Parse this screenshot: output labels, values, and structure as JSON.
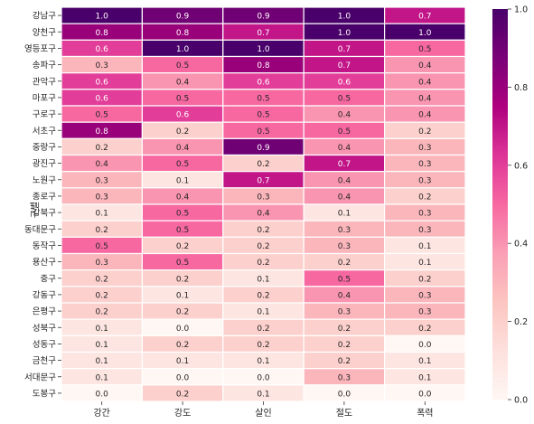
{
  "chart_data": {
    "type": "heatmap",
    "title": "",
    "xlabel": "",
    "ylabel": "구별",
    "columns": [
      "강간",
      "강도",
      "살인",
      "절도",
      "폭력"
    ],
    "rows": [
      "강남구",
      "양천구",
      "영등포구",
      "송파구",
      "관악구",
      "마포구",
      "구로구",
      "서초구",
      "중랑구",
      "광진구",
      "노원구",
      "종로구",
      "강북구",
      "동대문구",
      "동작구",
      "용산구",
      "중구",
      "강동구",
      "은평구",
      "성북구",
      "성동구",
      "금천구",
      "서대문구",
      "도봉구"
    ],
    "values": [
      [
        1.0,
        0.9,
        0.9,
        1.0,
        0.7
      ],
      [
        0.8,
        0.8,
        0.7,
        1.0,
        1.0
      ],
      [
        0.6,
        1.0,
        1.0,
        0.7,
        0.5
      ],
      [
        0.3,
        0.5,
        0.8,
        0.7,
        0.4
      ],
      [
        0.6,
        0.4,
        0.6,
        0.6,
        0.4
      ],
      [
        0.6,
        0.5,
        0.5,
        0.5,
        0.4
      ],
      [
        0.5,
        0.6,
        0.5,
        0.4,
        0.4
      ],
      [
        0.8,
        0.2,
        0.5,
        0.5,
        0.2
      ],
      [
        0.2,
        0.4,
        0.9,
        0.4,
        0.3
      ],
      [
        0.4,
        0.5,
        0.2,
        0.7,
        0.3
      ],
      [
        0.3,
        0.1,
        0.7,
        0.4,
        0.3
      ],
      [
        0.3,
        0.4,
        0.3,
        0.4,
        0.2
      ],
      [
        0.1,
        0.5,
        0.4,
        0.1,
        0.3
      ],
      [
        0.2,
        0.5,
        0.2,
        0.3,
        0.3
      ],
      [
        0.5,
        0.2,
        0.2,
        0.3,
        0.1
      ],
      [
        0.3,
        0.5,
        0.2,
        0.2,
        0.1
      ],
      [
        0.2,
        0.2,
        0.1,
        0.5,
        0.2
      ],
      [
        0.2,
        0.1,
        0.2,
        0.4,
        0.3
      ],
      [
        0.2,
        0.2,
        0.1,
        0.3,
        0.3
      ],
      [
        0.1,
        0.0,
        0.2,
        0.2,
        0.2
      ],
      [
        0.1,
        0.2,
        0.2,
        0.2,
        0.0
      ],
      [
        0.1,
        0.1,
        0.1,
        0.2,
        0.1
      ],
      [
        0.1,
        0.0,
        0.0,
        0.3,
        0.1
      ],
      [
        0.0,
        0.2,
        0.1,
        0.0,
        0.0
      ]
    ],
    "value_format": "one decimal",
    "colorbar": {
      "min": 0.0,
      "max": 1.0,
      "ticks": [
        "0.0",
        "0.2",
        "0.4",
        "0.6",
        "0.8",
        "1.0"
      ]
    },
    "colormap": "RdPu",
    "colormap_stops": [
      "#fff7f3",
      "#fde0dd",
      "#fcc5c0",
      "#fa9fb5",
      "#f768a1",
      "#dd3497",
      "#ae017e",
      "#7a0177",
      "#49006a"
    ],
    "cell_separator_color": "#ffffff",
    "legend": "colorbar right"
  }
}
